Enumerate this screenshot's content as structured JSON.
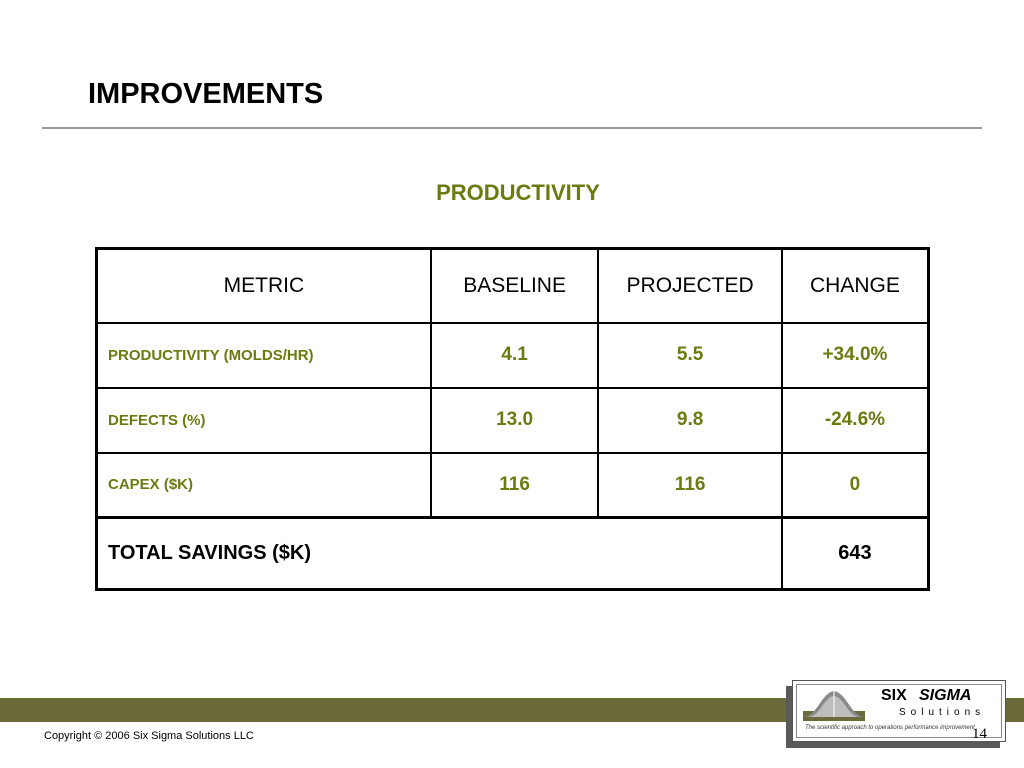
{
  "slide": {
    "title": "IMPROVEMENTS",
    "subtitle": "PRODUCTIVITY",
    "accent_color": "#6b7b10",
    "footer_bar_color": "#6b6b3a"
  },
  "table": {
    "headers": [
      "METRIC",
      "BASELINE",
      "PROJECTED",
      "CHANGE"
    ],
    "rows": [
      {
        "metric": "PRODUCTIVITY (MOLDS/HR)",
        "baseline": "4.1",
        "projected": "5.5",
        "change": "+34.0%"
      },
      {
        "metric": "DEFECTS (%)",
        "baseline": "13.0",
        "projected": "9.8",
        "change": "-24.6%"
      },
      {
        "metric": "CAPEX ($K)",
        "baseline": "116",
        "projected": "116",
        "change": "0"
      }
    ],
    "total": {
      "label": "TOTAL SAVINGS ($K)",
      "value": "643"
    }
  },
  "footer": {
    "copyright": "Copyright © 2006 Six Sigma Solutions LLC",
    "page_number": "14"
  },
  "logo": {
    "six": "SIX",
    "sigma": "SIGMA",
    "solutions": "Solutions",
    "tagline": "The scientific approach to operations performance improvement"
  }
}
